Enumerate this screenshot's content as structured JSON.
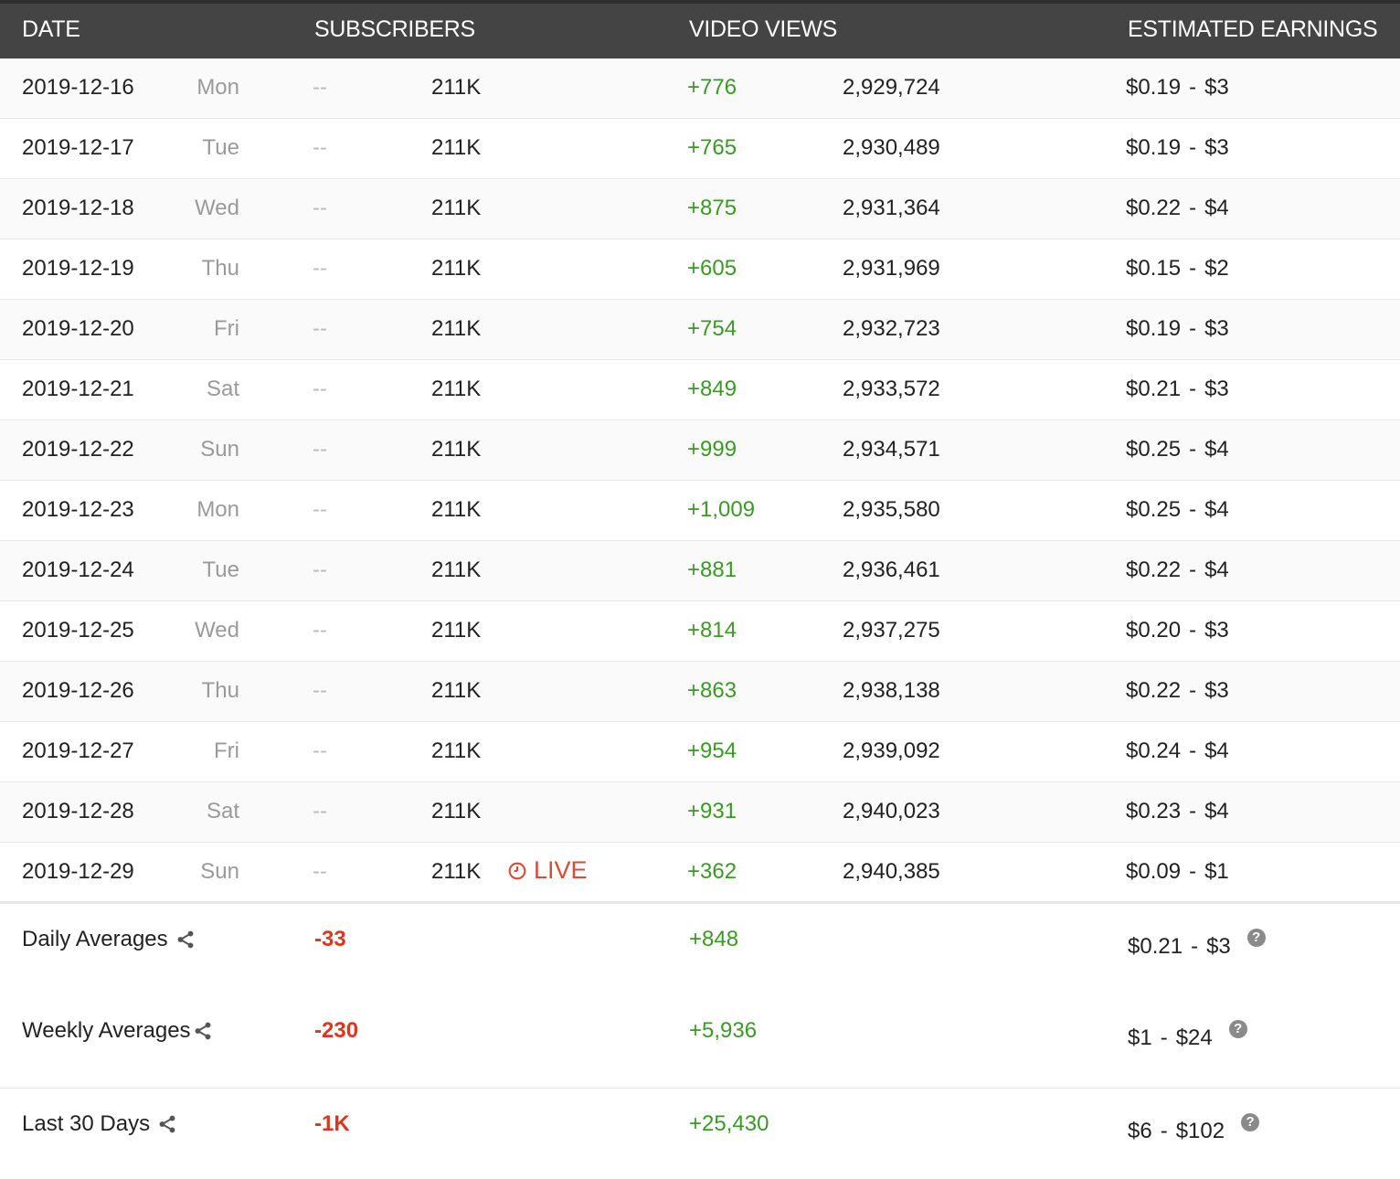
{
  "header": {
    "date": "DATE",
    "subscribers": "SUBSCRIBERS",
    "video_views": "VIDEO VIEWS",
    "earnings": "ESTIMATED EARNINGS"
  },
  "rows": [
    {
      "date": "2019-12-16",
      "day": "Mon",
      "sub_delta": "--",
      "subs": "211K",
      "view_delta": "+776",
      "views": "2,929,724",
      "earn_low": "$0.19",
      "earn_high": "$3"
    },
    {
      "date": "2019-12-17",
      "day": "Tue",
      "sub_delta": "--",
      "subs": "211K",
      "view_delta": "+765",
      "views": "2,930,489",
      "earn_low": "$0.19",
      "earn_high": "$3"
    },
    {
      "date": "2019-12-18",
      "day": "Wed",
      "sub_delta": "--",
      "subs": "211K",
      "view_delta": "+875",
      "views": "2,931,364",
      "earn_low": "$0.22",
      "earn_high": "$4"
    },
    {
      "date": "2019-12-19",
      "day": "Thu",
      "sub_delta": "--",
      "subs": "211K",
      "view_delta": "+605",
      "views": "2,931,969",
      "earn_low": "$0.15",
      "earn_high": "$2"
    },
    {
      "date": "2019-12-20",
      "day": "Fri",
      "sub_delta": "--",
      "subs": "211K",
      "view_delta": "+754",
      "views": "2,932,723",
      "earn_low": "$0.19",
      "earn_high": "$3"
    },
    {
      "date": "2019-12-21",
      "day": "Sat",
      "sub_delta": "--",
      "subs": "211K",
      "view_delta": "+849",
      "views": "2,933,572",
      "earn_low": "$0.21",
      "earn_high": "$3"
    },
    {
      "date": "2019-12-22",
      "day": "Sun",
      "sub_delta": "--",
      "subs": "211K",
      "view_delta": "+999",
      "views": "2,934,571",
      "earn_low": "$0.25",
      "earn_high": "$4"
    },
    {
      "date": "2019-12-23",
      "day": "Mon",
      "sub_delta": "--",
      "subs": "211K",
      "view_delta": "+1,009",
      "views": "2,935,580",
      "earn_low": "$0.25",
      "earn_high": "$4"
    },
    {
      "date": "2019-12-24",
      "day": "Tue",
      "sub_delta": "--",
      "subs": "211K",
      "view_delta": "+881",
      "views": "2,936,461",
      "earn_low": "$0.22",
      "earn_high": "$4"
    },
    {
      "date": "2019-12-25",
      "day": "Wed",
      "sub_delta": "--",
      "subs": "211K",
      "view_delta": "+814",
      "views": "2,937,275",
      "earn_low": "$0.20",
      "earn_high": "$3"
    },
    {
      "date": "2019-12-26",
      "day": "Thu",
      "sub_delta": "--",
      "subs": "211K",
      "view_delta": "+863",
      "views": "2,938,138",
      "earn_low": "$0.22",
      "earn_high": "$3"
    },
    {
      "date": "2019-12-27",
      "day": "Fri",
      "sub_delta": "--",
      "subs": "211K",
      "view_delta": "+954",
      "views": "2,939,092",
      "earn_low": "$0.24",
      "earn_high": "$4"
    },
    {
      "date": "2019-12-28",
      "day": "Sat",
      "sub_delta": "--",
      "subs": "211K",
      "view_delta": "+931",
      "views": "2,940,023",
      "earn_low": "$0.23",
      "earn_high": "$4"
    },
    {
      "date": "2019-12-29",
      "day": "Sun",
      "sub_delta": "--",
      "subs": "211K",
      "live": "LIVE",
      "view_delta": "+362",
      "views": "2,940,385",
      "earn_low": "$0.09",
      "earn_high": "$1"
    }
  ],
  "earn_separator": "-",
  "summary": {
    "daily": {
      "label": "Daily Averages",
      "subs": "-33",
      "views": "+848",
      "earn_low": "$0.21",
      "earn_high": "$3"
    },
    "weekly": {
      "label": "Weekly Averages",
      "subs": "-230",
      "views": "+5,936",
      "earn_low": "$1",
      "earn_high": "$24"
    },
    "last30": {
      "label": "Last 30 Days",
      "subs": "-1K",
      "views": "+25,430",
      "earn_low": "$6",
      "earn_high": "$102"
    }
  },
  "help_glyph": "?",
  "colors": {
    "header_bg": "#444444",
    "positive": "#3a9a24",
    "negative": "#d9381e",
    "live": "#d94b34"
  },
  "icons": {
    "share": "share-icon",
    "help": "help-icon",
    "clock": "clock-icon"
  }
}
